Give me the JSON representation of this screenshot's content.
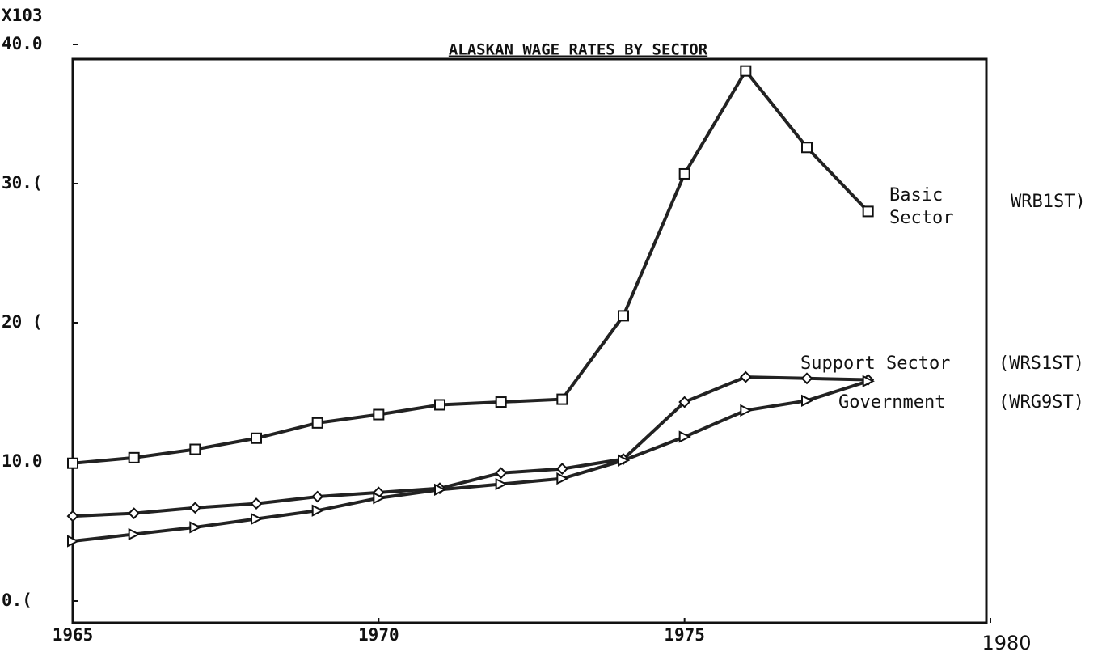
{
  "chart_data": {
    "type": "line",
    "title": "ALASKAN WAGE RATES BY SECTOR",
    "y_multiplier": "X103",
    "x": [
      1965,
      1966,
      1967,
      1968,
      1969,
      1970,
      1971,
      1972,
      1973,
      1974,
      1975,
      1976,
      1977,
      1978
    ],
    "xlim": [
      1965,
      1980
    ],
    "xticks": [
      1965,
      1970,
      1975,
      1980
    ],
    "ylim": [
      0,
      40
    ],
    "yticks": [
      {
        "value": 0,
        "label": "0.("
      },
      {
        "value": 10,
        "label": "10.0"
      },
      {
        "value": 20,
        "label": "20 ("
      },
      {
        "value": 30,
        "label": "30.("
      },
      {
        "value": 40,
        "label": "40.0"
      }
    ],
    "series": [
      {
        "name": "Basic Sector",
        "code": "WRB1ST)",
        "marker": "square",
        "color": "#222",
        "values": [
          9.9,
          10.3,
          10.9,
          11.7,
          12.8,
          13.4,
          14.1,
          14.3,
          14.5,
          20.5,
          30.7,
          38.1,
          32.6,
          28.0
        ]
      },
      {
        "name": "Support Sector",
        "code": "(WRS1ST)",
        "marker": "diamond",
        "color": "#222",
        "values": [
          6.1,
          6.3,
          6.7,
          7.0,
          7.5,
          7.8,
          8.1,
          9.2,
          9.5,
          10.2,
          14.3,
          16.1,
          16.0,
          15.9
        ]
      },
      {
        "name": "Government",
        "code": "(WRG9ST)",
        "marker": "triangle",
        "color": "#222",
        "values": [
          4.3,
          4.8,
          5.3,
          5.9,
          6.5,
          7.4,
          8.0,
          8.4,
          8.8,
          10.1,
          11.8,
          13.7,
          14.4,
          15.8
        ]
      }
    ]
  }
}
